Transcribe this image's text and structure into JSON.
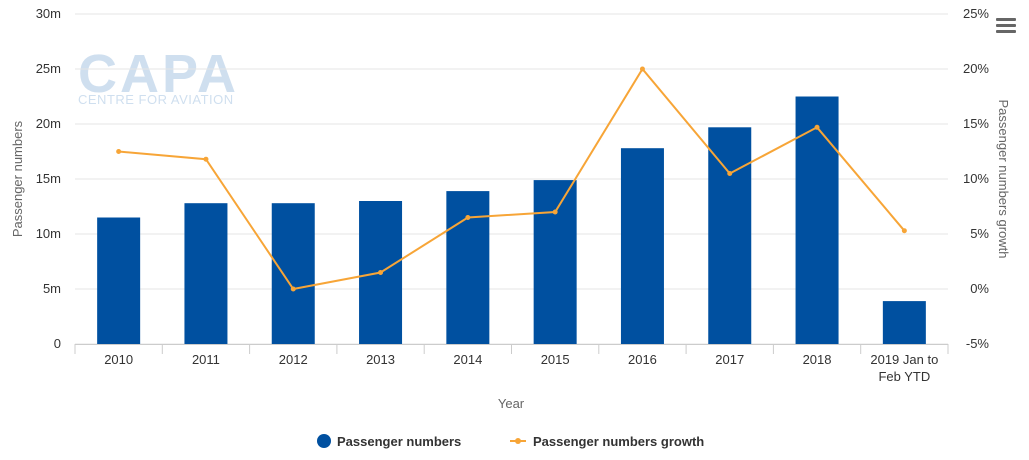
{
  "watermark": {
    "brand": "CAPA",
    "tagline": "CENTRE FOR AVIATION"
  },
  "menu_icon": "hamburger-menu-icon",
  "colors": {
    "bars": "#0050a0",
    "line": "#f7a537",
    "grid": "#e6e6e6",
    "watermark": "#c8daea"
  },
  "chart_data": {
    "type": "bar",
    "categories": [
      "2010",
      "2011",
      "2012",
      "2013",
      "2014",
      "2015",
      "2016",
      "2017",
      "2018",
      "2019 Jan to Feb YTD"
    ],
    "category_lines": [
      [
        "2010"
      ],
      [
        "2011"
      ],
      [
        "2012"
      ],
      [
        "2013"
      ],
      [
        "2014"
      ],
      [
        "2015"
      ],
      [
        "2016"
      ],
      [
        "2017"
      ],
      [
        "2018"
      ],
      [
        "2019 Jan to",
        "Feb YTD"
      ]
    ],
    "series": [
      {
        "name": "Passenger numbers",
        "type": "bar",
        "axis": "left",
        "values": [
          11.5,
          12.8,
          12.8,
          13.0,
          13.9,
          14.9,
          17.8,
          19.7,
          22.5,
          3.9
        ]
      },
      {
        "name": "Passenger numbers growth",
        "type": "line",
        "axis": "right",
        "values": [
          12.5,
          11.8,
          0.0,
          1.5,
          6.5,
          7.0,
          20.0,
          10.5,
          14.7,
          5.3
        ]
      }
    ],
    "xlabel": "Year",
    "ylabel": "Passenger numbers",
    "ylabel_right": "Passenger numbers growth",
    "ylim": [
      0,
      30
    ],
    "ylim_right": [
      -5,
      25
    ],
    "yticks": [
      "0",
      "5m",
      "10m",
      "15m",
      "20m",
      "25m",
      "30m"
    ],
    "yticks_right": [
      "-5%",
      "0%",
      "5%",
      "10%",
      "15%",
      "20%",
      "25%"
    ],
    "grid": true,
    "legend_position": "bottom-center"
  }
}
